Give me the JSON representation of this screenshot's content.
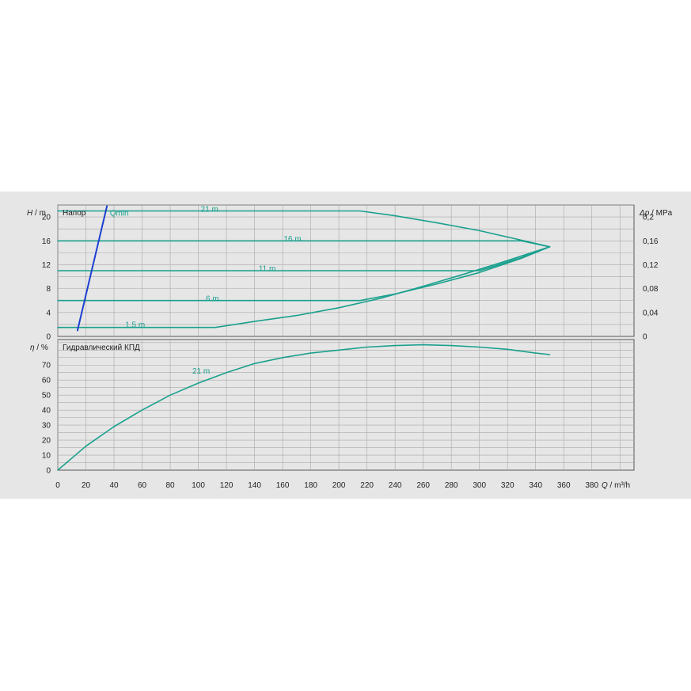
{
  "chart_data": [
    {
      "type": "line",
      "title": "Напор",
      "ylabel_symbol": "H",
      "ylabel_unit": " / m",
      "ylabel2_symbol": "Δp",
      "ylabel2_unit": " / MPa",
      "xlim": [
        0,
        410
      ],
      "ylim": [
        0,
        22
      ],
      "y2lim": [
        0,
        0.22
      ],
      "yticks": [
        0,
        4,
        8,
        12,
        16,
        20
      ],
      "ytick_labels": [
        "0",
        "4",
        "8",
        "12",
        "16",
        "20"
      ],
      "y2ticks": [
        0,
        0.04,
        0.08,
        0.12,
        0.16,
        0.2
      ],
      "y2tick_labels": [
        "0",
        "0,04",
        "0,08",
        "0,12",
        "0,16",
        "0,2"
      ],
      "grid": true,
      "colors": {
        "curve": "#1aa08e",
        "qmin": "#1c3fcf",
        "grid": "#a8a8a8"
      },
      "series": [
        {
          "name": "21 m",
          "label_at": [
            108,
            21.3
          ],
          "x": [
            0,
            215,
            240,
            270,
            300,
            330,
            350
          ],
          "y": [
            21,
            21,
            20.2,
            19,
            17.7,
            16.1,
            15
          ]
        },
        {
          "name": "16 m",
          "label_at": [
            167,
            16.3
          ],
          "x": [
            0,
            330,
            350
          ],
          "y": [
            16,
            16,
            15
          ]
        },
        {
          "name": "11 m",
          "label_at": [
            149,
            11.3
          ],
          "x": [
            0,
            300,
            330,
            350
          ],
          "y": [
            11,
            11,
            13.2,
            15
          ]
        },
        {
          "name": "6 m",
          "label_at": [
            110,
            6.3
          ],
          "x": [
            0,
            215,
            240,
            270,
            300,
            330,
            350
          ],
          "y": [
            6,
            6,
            7.1,
            8.8,
            10.7,
            13.1,
            15
          ]
        },
        {
          "name": "1,5 m",
          "label_at": [
            55,
            1.9
          ],
          "x": [
            0,
            112,
            140,
            170,
            200,
            230,
            260,
            290,
            320,
            350
          ],
          "y": [
            1.5,
            1.5,
            2.5,
            3.5,
            4.8,
            6.4,
            8.4,
            10.5,
            12.7,
            15
          ]
        },
        {
          "name": "Qmin",
          "label_at": [
            37,
            20.6
          ],
          "x": [
            14,
            35
          ],
          "y": [
            1,
            21.8
          ]
        }
      ]
    },
    {
      "type": "line",
      "title": "Гидравлический КПД",
      "ylabel_symbol": "η",
      "ylabel_unit": " / %",
      "xlabel_symbol": "Q",
      "xlabel_unit": " / m³/h",
      "xlim": [
        0,
        410
      ],
      "ylim": [
        0,
        87
      ],
      "yticks": [
        0,
        10,
        20,
        30,
        40,
        50,
        60,
        70
      ],
      "ytick_labels": [
        "0",
        "10",
        "20",
        "30",
        "40",
        "50",
        "60",
        "70"
      ],
      "xticks": [
        0,
        20,
        40,
        60,
        80,
        100,
        120,
        140,
        160,
        180,
        200,
        220,
        240,
        260,
        280,
        300,
        320,
        340,
        360,
        380
      ],
      "xtick_labels": [
        "0",
        "20",
        "40",
        "60",
        "80",
        "100",
        "120",
        "140",
        "160",
        "180",
        "200",
        "220",
        "240",
        "260",
        "280",
        "300",
        "320",
        "340",
        "360",
        "380"
      ],
      "grid": true,
      "series": [
        {
          "name": "21 m",
          "label_at": [
            102,
            66
          ],
          "x": [
            0,
            20,
            40,
            60,
            80,
            100,
            120,
            140,
            160,
            180,
            200,
            220,
            240,
            260,
            280,
            300,
            320,
            340,
            350
          ],
          "y": [
            0,
            16,
            29,
            40,
            50,
            58,
            65,
            71,
            75,
            78,
            80,
            82,
            83,
            83.5,
            83,
            82,
            80.5,
            78,
            77
          ]
        }
      ]
    }
  ]
}
